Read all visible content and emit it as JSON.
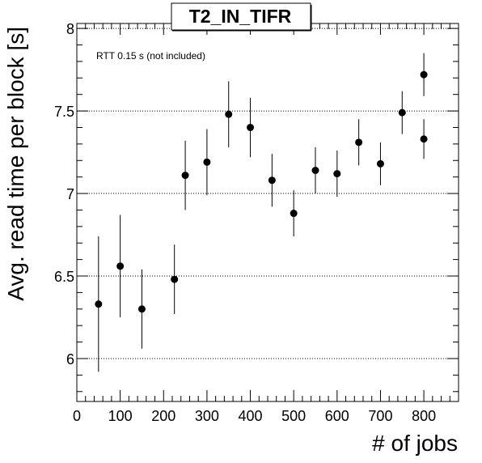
{
  "chart_data": {
    "type": "scatter",
    "title": "T2_IN_TIFR",
    "xlabel": "# of jobs",
    "ylabel": "Avg. read time per block [s]",
    "annotation": "RTT 0.15 s (not included)",
    "xlim": [
      0,
      880
    ],
    "ylim": [
      5.74,
      8.03
    ],
    "x_ticks": [
      0,
      100,
      200,
      300,
      400,
      500,
      600,
      700,
      800
    ],
    "x_tick_labels": [
      "0",
      "100",
      "200",
      "300",
      "400",
      "500",
      "600",
      "700",
      "800"
    ],
    "y_ticks": [
      6,
      6.5,
      7,
      7.5,
      8
    ],
    "y_tick_labels": [
      "6",
      "6.5",
      "7",
      "7.5",
      "8"
    ],
    "grid": {
      "x": false,
      "y": true,
      "style": "dotted"
    },
    "marker_color": "#000000",
    "points": [
      {
        "x": 50,
        "y": 6.33,
        "err": 0.41
      },
      {
        "x": 100,
        "y": 6.56,
        "err": 0.31
      },
      {
        "x": 150,
        "y": 6.3,
        "err": 0.24
      },
      {
        "x": 225,
        "y": 6.48,
        "err": 0.21
      },
      {
        "x": 250,
        "y": 7.11,
        "err": 0.21
      },
      {
        "x": 300,
        "y": 7.19,
        "err": 0.2
      },
      {
        "x": 350,
        "y": 7.48,
        "err": 0.2
      },
      {
        "x": 400,
        "y": 7.4,
        "err": 0.18
      },
      {
        "x": 450,
        "y": 7.08,
        "err": 0.16
      },
      {
        "x": 500,
        "y": 6.88,
        "err": 0.14
      },
      {
        "x": 550,
        "y": 7.14,
        "err": 0.14
      },
      {
        "x": 600,
        "y": 7.12,
        "err": 0.14
      },
      {
        "x": 650,
        "y": 7.31,
        "err": 0.14
      },
      {
        "x": 700,
        "y": 7.18,
        "err": 0.13
      },
      {
        "x": 750,
        "y": 7.49,
        "err": 0.13
      },
      {
        "x": 800,
        "y": 7.33,
        "err": 0.12
      },
      {
        "x": 800,
        "y": 7.72,
        "err": 0.13
      }
    ]
  }
}
